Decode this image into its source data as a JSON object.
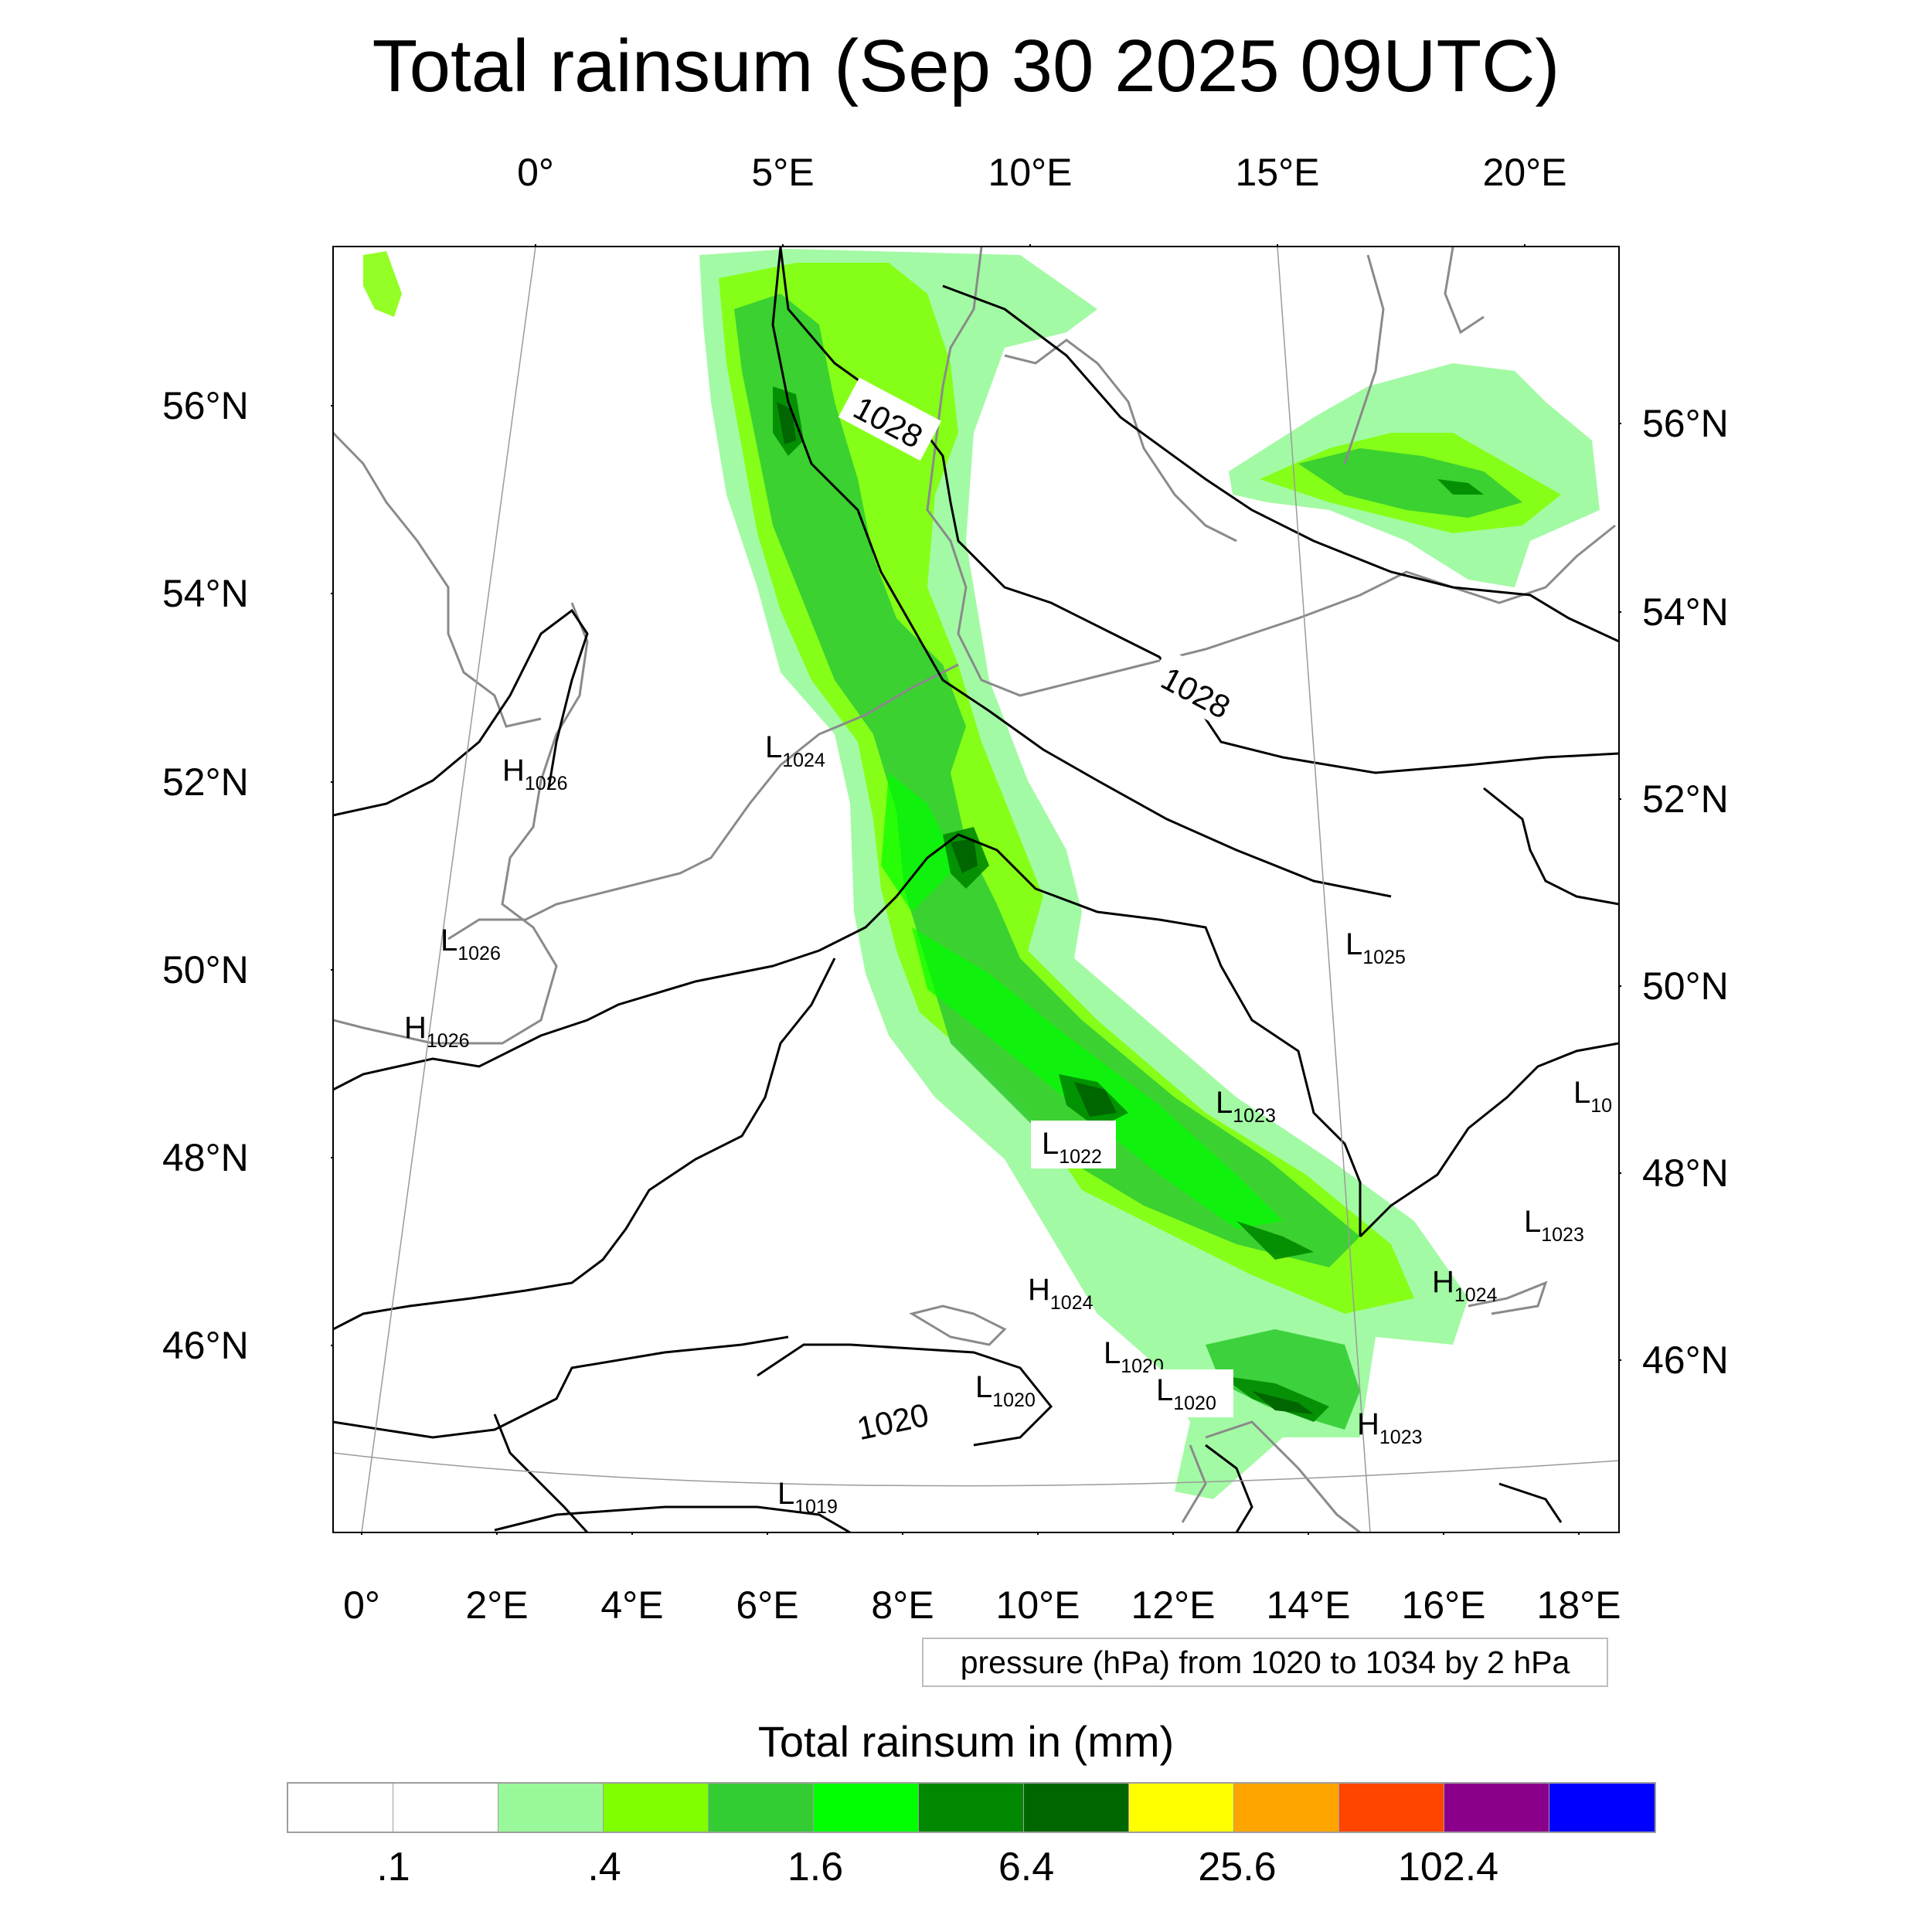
{
  "title": "Total rainsum (Sep 30 2025 09UTC)",
  "top_ticks": [
    "0°",
    "5°E",
    "10°E",
    "15°E",
    "20°E"
  ],
  "bottom_ticks": [
    "0°",
    "2°E",
    "4°E",
    "6°E",
    "8°E",
    "10°E",
    "12°E",
    "14°E",
    "16°E",
    "18°E"
  ],
  "left_ticks": [
    "56°N",
    "54°N",
    "52°N",
    "50°N",
    "48°N",
    "46°N"
  ],
  "right_ticks": [
    "56°N",
    "54°N",
    "52°N",
    "50°N",
    "48°N",
    "46°N"
  ],
  "contour_labels": [
    "1028",
    "1028",
    "1020"
  ],
  "pressure_centers": [
    {
      "letter": "H",
      "value": "1026"
    },
    {
      "letter": "L",
      "value": "1024"
    },
    {
      "letter": "L",
      "value": "1026"
    },
    {
      "letter": "H",
      "value": "1026"
    },
    {
      "letter": "L",
      "value": "1025"
    },
    {
      "letter": "L",
      "value": "1023"
    },
    {
      "letter": "L",
      "value": "1022"
    },
    {
      "letter": "L",
      "value": "10"
    },
    {
      "letter": "L",
      "value": "1023"
    },
    {
      "letter": "H",
      "value": "1024"
    },
    {
      "letter": "H",
      "value": "1024"
    },
    {
      "letter": "L",
      "value": "1020"
    },
    {
      "letter": "L",
      "value": "1020"
    },
    {
      "letter": "L",
      "value": "1020"
    },
    {
      "letter": "H",
      "value": "1023"
    },
    {
      "letter": "L",
      "value": "1019"
    }
  ],
  "info_text": "pressure (hPa) from 1020 to 1034 by 2 hPa",
  "colorbar": {
    "title": "Total rainsum in (mm)",
    "colors": [
      "#ffffff",
      "#ffffff",
      "#99f99a",
      "#80ff00",
      "#33cc33",
      "#00ff00",
      "#008800",
      "#006600",
      "#ffff00",
      "#ffa500",
      "#ff4500",
      "#8b008b",
      "#0000ff"
    ],
    "labels": [
      ".1",
      ".4",
      "1.6",
      "6.4",
      "25.6",
      "102.4"
    ]
  },
  "colors": {
    "light_green": "#99f99a",
    "lime": "#80ff00",
    "mid_green": "#33cc33",
    "bright_green": "#00ff00",
    "green": "#008800",
    "dark_green": "#006600",
    "coast": "#8a8a8a",
    "isobar": "#000000"
  }
}
